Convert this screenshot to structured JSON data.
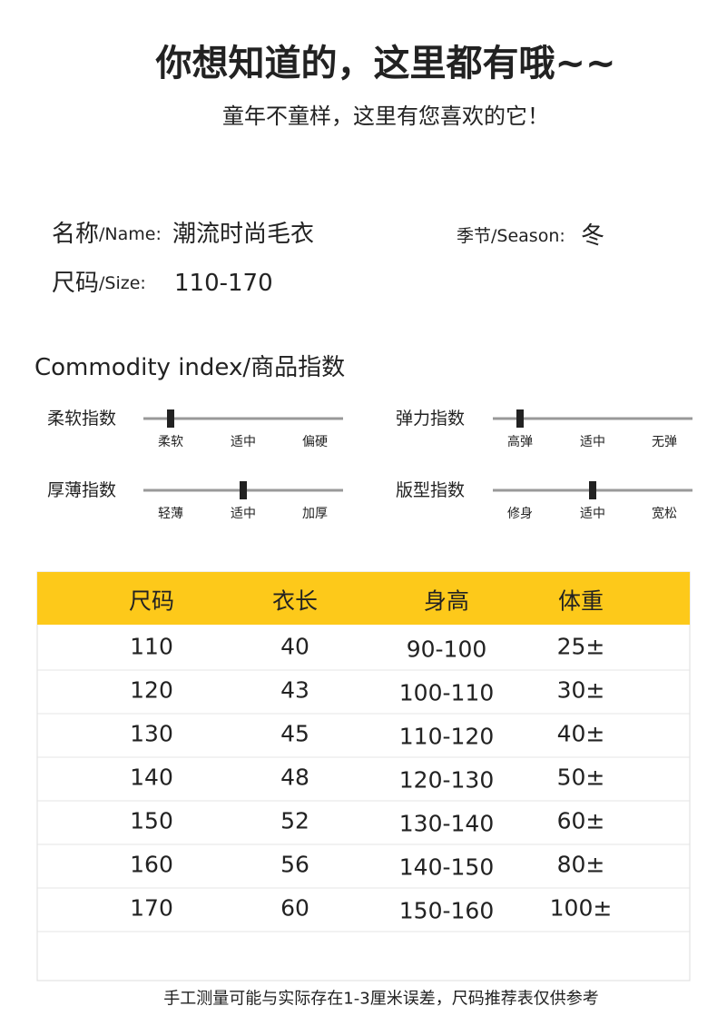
{
  "header": {
    "title": "你想知道的，这里都有哦~~",
    "subtitle": "童年不童样，这里有您喜欢的它！"
  },
  "info": {
    "name_label": "名称",
    "name_en": "/Name:",
    "name_value": "潮流时尚毛衣",
    "season_label": "季节",
    "season_en": "/Season:",
    "season_value": "冬",
    "size_label": "尺码",
    "size_en": "/Size:",
    "size_value": "110-170"
  },
  "index": {
    "title": "Commodity index/商品指数",
    "items": [
      {
        "label": "柔软指数",
        "scale": [
          "柔软",
          "适中",
          "偏硬"
        ],
        "selected": 0
      },
      {
        "label": "弹力指数",
        "scale": [
          "高弹",
          "适中",
          "无弹"
        ],
        "selected": 0
      },
      {
        "label": "厚薄指数",
        "scale": [
          "轻薄",
          "适中",
          "加厚"
        ],
        "selected": 1
      },
      {
        "label": "版型指数",
        "scale": [
          "修身",
          "适中",
          "宽松"
        ],
        "selected": 1
      }
    ]
  },
  "table": {
    "headers": [
      "尺码",
      "衣长",
      "身高",
      "体重"
    ],
    "rows": [
      [
        "110",
        "40",
        "90-100",
        "25±"
      ],
      [
        "120",
        "43",
        "100-110",
        "30±"
      ],
      [
        "130",
        "45",
        "110-120",
        "40±"
      ],
      [
        "140",
        "48",
        "120-130",
        "50±"
      ],
      [
        "150",
        "52",
        "130-140",
        "60±"
      ],
      [
        "160",
        "56",
        "140-150",
        "80±"
      ],
      [
        "170",
        "60",
        "150-160",
        "100±"
      ]
    ]
  },
  "footer": {
    "note": "手工测量可能与实际存在1-3厘米误差，尺码推荐表仅供参考"
  }
}
